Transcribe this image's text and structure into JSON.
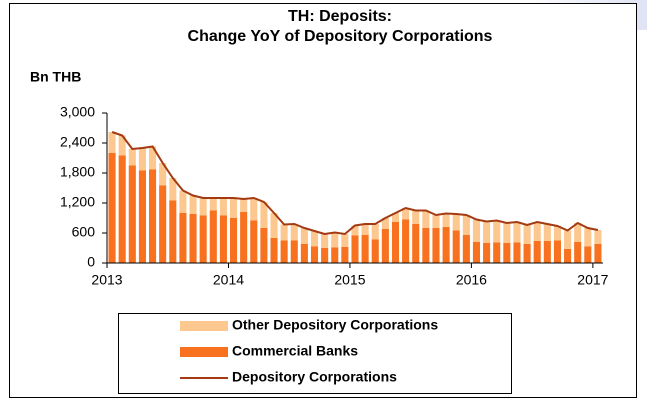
{
  "chart_data": {
    "type": "bar",
    "title": "TH: Deposits:",
    "subtitle": "Change YoY of Depository Corporations",
    "y_label": "Bn THB",
    "categories": [
      "2013",
      null,
      null,
      null,
      null,
      null,
      null,
      null,
      null,
      null,
      null,
      null,
      "2014",
      null,
      null,
      null,
      null,
      null,
      null,
      null,
      null,
      null,
      null,
      null,
      "2015",
      null,
      null,
      null,
      null,
      null,
      null,
      null,
      null,
      null,
      null,
      null,
      "2016",
      null,
      null,
      null,
      null,
      null,
      null,
      null,
      null,
      null,
      null,
      null,
      "2017"
    ],
    "series": [
      {
        "name": "Commercial Banks",
        "color": "#f7711e",
        "stack": true,
        "values": [
          2200,
          2150,
          1950,
          1850,
          1870,
          1550,
          1250,
          1000,
          980,
          950,
          1050,
          950,
          900,
          1020,
          850,
          700,
          500,
          450,
          450,
          380,
          330,
          300,
          310,
          320,
          550,
          560,
          470,
          680,
          820,
          870,
          780,
          700,
          700,
          720,
          650,
          560,
          420,
          400,
          410,
          400,
          410,
          380,
          440,
          440,
          450,
          280,
          420,
          330,
          380
        ]
      },
      {
        "name": "Other Depository Corporations",
        "color": "#fcc88f",
        "stack": true,
        "values": [
          420,
          400,
          330,
          450,
          460,
          450,
          450,
          450,
          370,
          350,
          250,
          350,
          400,
          260,
          450,
          520,
          500,
          320,
          330,
          320,
          310,
          280,
          300,
          260,
          200,
          220,
          310,
          220,
          180,
          230,
          270,
          350,
          260,
          270,
          330,
          400,
          450,
          430,
          440,
          400,
          410,
          380,
          380,
          340,
          290,
          370,
          380,
          370,
          280
        ]
      },
      {
        "name": "Depository Corporations",
        "color": "#a33a12",
        "line": true,
        "values": [
          2620,
          2550,
          2280,
          2300,
          2330,
          2000,
          1700,
          1450,
          1350,
          1300,
          1300,
          1300,
          1300,
          1280,
          1300,
          1220,
          1000,
          770,
          780,
          700,
          640,
          580,
          610,
          580,
          750,
          780,
          780,
          900,
          1000,
          1100,
          1050,
          1050,
          960,
          990,
          980,
          960,
          870,
          830,
          850,
          800,
          820,
          760,
          820,
          780,
          740,
          650,
          800,
          700,
          660
        ]
      }
    ],
    "ylim": [
      0,
      3000
    ],
    "yticks": [
      0,
      600,
      {
        "value": 1200,
        "label": "1,200"
      },
      {
        "value": 1800,
        "label": "1,800"
      },
      {
        "value": 2400,
        "label": "2,400"
      },
      {
        "value": 3000,
        "label": "3,000"
      }
    ],
    "legend": "bottom"
  }
}
